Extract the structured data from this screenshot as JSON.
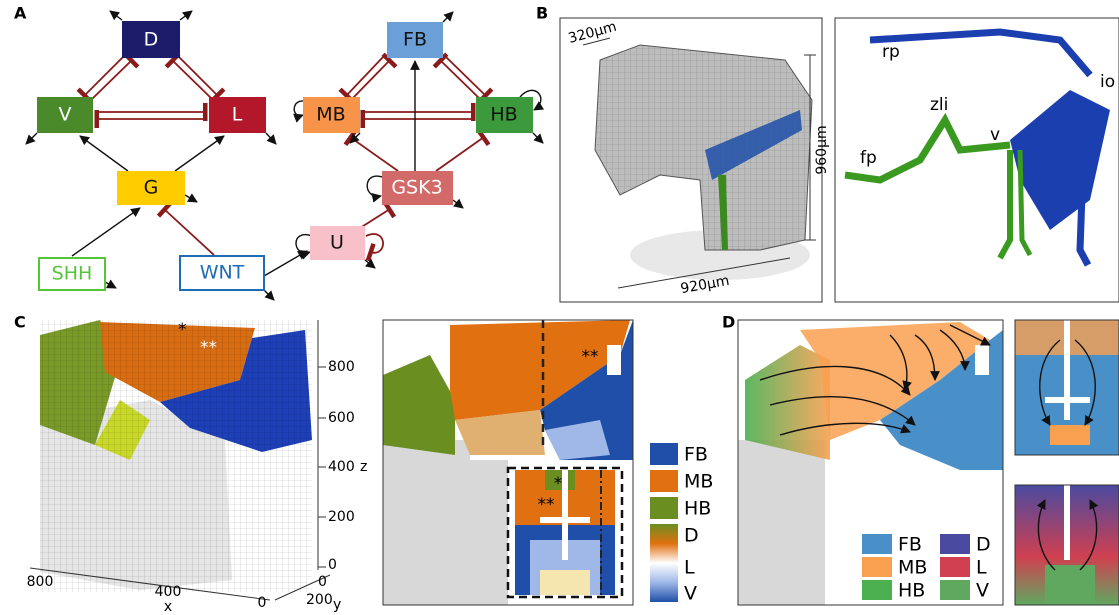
{
  "panel_labels": [
    "A",
    "B",
    "C",
    "D"
  ],
  "network": {
    "nodes": [
      "D",
      "V",
      "L",
      "G",
      "SHH",
      "WNT",
      "FB",
      "MB",
      "HB",
      "GSK3",
      "U"
    ]
  },
  "panel_b": {
    "scale_labels": [
      "320μm",
      "960μm",
      "920μm"
    ],
    "region_labels": [
      "rp",
      "io",
      "zli",
      "fp",
      "v"
    ]
  },
  "panel_c": {
    "markers": [
      "*",
      "**",
      "**",
      "*",
      "**"
    ],
    "z_ticks": [
      800,
      600,
      400,
      200,
      0
    ],
    "z_label": "z",
    "x_ticks": [
      800,
      400,
      0
    ],
    "x_label": "x",
    "y_ticks": [
      0,
      200
    ],
    "y_label": "y",
    "legend": [
      "FB",
      "MB",
      "HB",
      "D",
      "L",
      "V"
    ]
  },
  "panel_d": {
    "legend": [
      "FB",
      "MB",
      "HB",
      "D",
      "L",
      "V"
    ]
  }
}
